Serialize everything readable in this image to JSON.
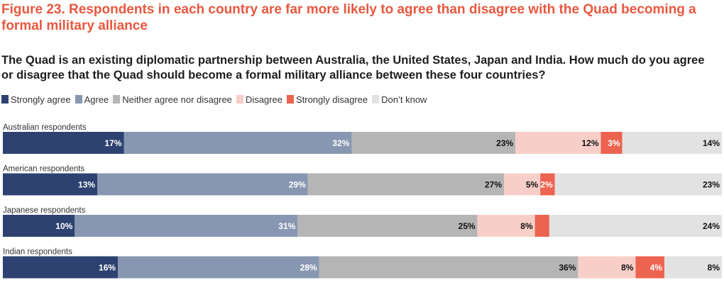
{
  "header": {
    "title": "Figure 23. Respondents in each country are far more likely to agree than disagree with the Quad becoming a formal military alliance",
    "question": "The Quad is an existing diplomatic partnership between Australia, the United States, Japan and India. How much do you agree or disagree that the Quad should become a formal military alliance between these four countries?"
  },
  "chart_data": {
    "type": "bar",
    "orientation": "horizontal-stacked-100",
    "legend_position": "top-left",
    "grid": false,
    "xlim": [
      0,
      100
    ],
    "legend": [
      {
        "name": "Strongly agree",
        "color": "#2d4270"
      },
      {
        "name": "Agree",
        "color": "#8897b1"
      },
      {
        "name": "Neither agree nor disagree",
        "color": "#b5b5b5"
      },
      {
        "name": "Disagree",
        "color": "#f8cfc8"
      },
      {
        "name": "Strongly disagree",
        "color": "#ec6350"
      },
      {
        "name": "Don’t know",
        "color": "#e2e2e2"
      }
    ],
    "categories": [
      "Australian respondents",
      "American respondents",
      "Japanese respondents",
      "Indian respondents"
    ],
    "series": [
      {
        "name": "Strongly agree",
        "values": [
          17,
          13,
          10,
          16
        ],
        "labels": [
          "17%",
          "13%",
          "10%",
          "16%"
        ]
      },
      {
        "name": "Agree",
        "values": [
          32,
          29,
          31,
          28
        ],
        "labels": [
          "32%",
          "29%",
          "31%",
          "28%"
        ]
      },
      {
        "name": "Neither agree nor disagree",
        "values": [
          23,
          27,
          25,
          36
        ],
        "labels": [
          "23%",
          "27%",
          "25%",
          "36%"
        ]
      },
      {
        "name": "Disagree",
        "values": [
          12,
          5,
          8,
          8
        ],
        "labels": [
          "12%",
          "5%",
          "8%",
          "8%"
        ]
      },
      {
        "name": "Strongly disagree",
        "values": [
          3,
          2,
          2,
          4
        ],
        "labels": [
          "3%",
          "2%",
          "",
          "4%"
        ]
      },
      {
        "name": "Don’t know",
        "values": [
          14,
          23,
          24,
          8
        ],
        "labels": [
          "14%",
          "23%",
          "24%",
          "8%"
        ]
      }
    ]
  }
}
